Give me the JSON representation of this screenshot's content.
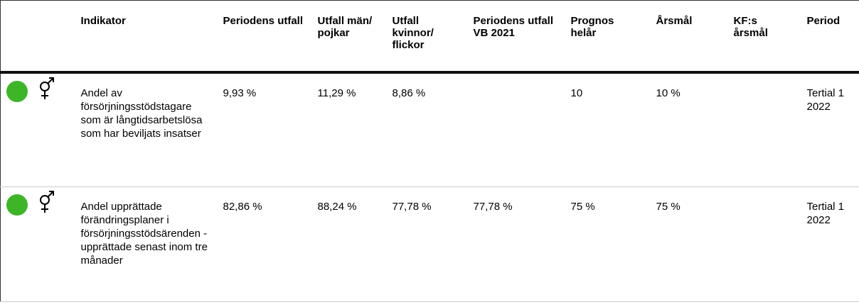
{
  "table": {
    "headers": [
      "Indikator",
      "Periodens utfall",
      "Utfall män/ pojkar",
      "Utfall kvinnor/ flickor",
      "Periodens utfall VB 2021",
      "Prognos helår",
      "Årsmål",
      "KF:s årsmål",
      "Period"
    ],
    "rows": [
      [
        "Andel av försörjningsstödstagare som är långtidsarbetslösa som har beviljats insatser",
        "9,93 %",
        "11,29 %",
        "8,86 %",
        "",
        "10",
        "10 %",
        "",
        "Tertial 1 2022"
      ],
      [
        "Andel upprättade förändringsplaner i försörjningsstödsärenden - upprättade senast inom tre månader",
        "82,86 %",
        "88,24 %",
        "77,78 %",
        "77,78 %",
        "75 %",
        "75 %",
        "",
        "Tertial 1 2022"
      ]
    ]
  }
}
